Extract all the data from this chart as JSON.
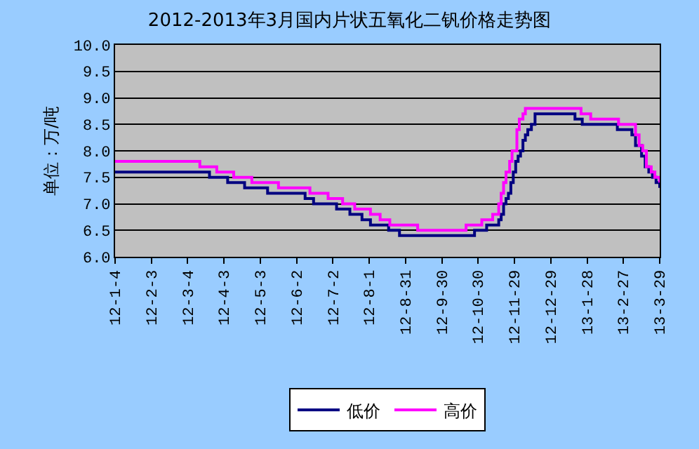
{
  "chart_data": {
    "type": "step",
    "title": "2012-2013年3月国内片状五氧化二钒价格走势图",
    "ylabel": "单位：万/吨",
    "xlim": [
      "2012-01-04",
      "2013-03-29"
    ],
    "xticks": [
      {
        "value": "2012-01-04",
        "label": "12-1-4"
      },
      {
        "value": "2012-02-03",
        "label": "12-2-3"
      },
      {
        "value": "2012-03-04",
        "label": "12-3-4"
      },
      {
        "value": "2012-04-03",
        "label": "12-4-3"
      },
      {
        "value": "2012-05-03",
        "label": "12-5-3"
      },
      {
        "value": "2012-06-02",
        "label": "12-6-2"
      },
      {
        "value": "2012-07-02",
        "label": "12-7-2"
      },
      {
        "value": "2012-08-01",
        "label": "12-8-1"
      },
      {
        "value": "2012-08-31",
        "label": "12-8-31"
      },
      {
        "value": "2012-09-30",
        "label": "12-9-30"
      },
      {
        "value": "2012-10-30",
        "label": "12-10-30"
      },
      {
        "value": "2012-11-29",
        "label": "12-11-29"
      },
      {
        "value": "2012-12-29",
        "label": "12-12-29"
      },
      {
        "value": "2013-01-28",
        "label": "13-1-28"
      },
      {
        "value": "2013-02-27",
        "label": "13-2-27"
      },
      {
        "value": "2013-03-29",
        "label": "13-3-29"
      }
    ],
    "ylim": [
      6.0,
      10.0
    ],
    "yticks": [
      {
        "value": 6.0,
        "label": "6.0"
      },
      {
        "value": 6.5,
        "label": "6.5"
      },
      {
        "value": 7.0,
        "label": "7.0"
      },
      {
        "value": 7.5,
        "label": "7.5"
      },
      {
        "value": 8.0,
        "label": "8.0"
      },
      {
        "value": 8.5,
        "label": "8.5"
      },
      {
        "value": 9.0,
        "label": "9.0"
      },
      {
        "value": 9.5,
        "label": "9.5"
      },
      {
        "value": 10.0,
        "label": "10.0"
      }
    ],
    "grid": "y",
    "legend": "bottom",
    "marker": "none",
    "line_style": "solid",
    "series": [
      {
        "name": "低价",
        "color": "#000080",
        "x": [
          "2012-01-04",
          "2012-03-22",
          "2012-04-06",
          "2012-04-20",
          "2012-05-09",
          "2012-06-09",
          "2012-06-16",
          "2012-07-05",
          "2012-07-16",
          "2012-07-26",
          "2012-08-02",
          "2012-08-17",
          "2012-08-26",
          "2012-10-27",
          "2012-11-06",
          "2012-11-16",
          "2012-11-18",
          "2012-11-20",
          "2012-11-22",
          "2012-11-24",
          "2012-11-26",
          "2012-11-28",
          "2012-11-30",
          "2012-12-02",
          "2012-12-04",
          "2012-12-06",
          "2012-12-08",
          "2012-12-10",
          "2012-12-13",
          "2012-12-16",
          "2013-01-18",
          "2013-01-24",
          "2013-02-22",
          "2013-03-06",
          "2013-03-09",
          "2013-03-14",
          "2013-03-17",
          "2013-03-20",
          "2013-03-23",
          "2013-03-26",
          "2013-03-29"
        ],
        "values": [
          7.6,
          7.5,
          7.4,
          7.3,
          7.2,
          7.1,
          7.0,
          6.9,
          6.8,
          6.7,
          6.6,
          6.5,
          6.4,
          6.5,
          6.6,
          6.7,
          6.8,
          7.0,
          7.1,
          7.2,
          7.4,
          7.6,
          7.8,
          7.9,
          8.0,
          8.2,
          8.3,
          8.4,
          8.5,
          8.7,
          8.6,
          8.5,
          8.4,
          8.3,
          8.1,
          7.9,
          7.7,
          7.6,
          7.5,
          7.4,
          7.3
        ]
      },
      {
        "name": "高价",
        "color": "#ff00ff",
        "x": [
          "2012-01-04",
          "2012-03-14",
          "2012-03-28",
          "2012-04-11",
          "2012-04-26",
          "2012-05-18",
          "2012-06-13",
          "2012-06-28",
          "2012-07-10",
          "2012-07-20",
          "2012-08-02",
          "2012-08-10",
          "2012-08-18",
          "2012-09-10",
          "2012-10-20",
          "2012-11-02",
          "2012-11-11",
          "2012-11-16",
          "2012-11-18",
          "2012-11-20",
          "2012-11-22",
          "2012-11-25",
          "2012-11-27",
          "2012-12-01",
          "2012-12-03",
          "2012-12-06",
          "2012-12-08",
          "2013-01-23",
          "2013-01-31",
          "2013-02-23",
          "2013-03-09",
          "2013-03-12",
          "2013-03-15",
          "2013-03-18",
          "2013-03-22",
          "2013-03-25",
          "2013-03-29"
        ],
        "values": [
          7.8,
          7.7,
          7.6,
          7.5,
          7.4,
          7.3,
          7.2,
          7.1,
          7.0,
          6.9,
          6.8,
          6.7,
          6.6,
          6.5,
          6.6,
          6.7,
          6.8,
          7.0,
          7.2,
          7.4,
          7.6,
          7.8,
          8.0,
          8.4,
          8.6,
          8.7,
          8.8,
          8.7,
          8.6,
          8.5,
          8.3,
          8.1,
          8.0,
          7.7,
          7.6,
          7.5,
          7.4
        ]
      }
    ]
  }
}
